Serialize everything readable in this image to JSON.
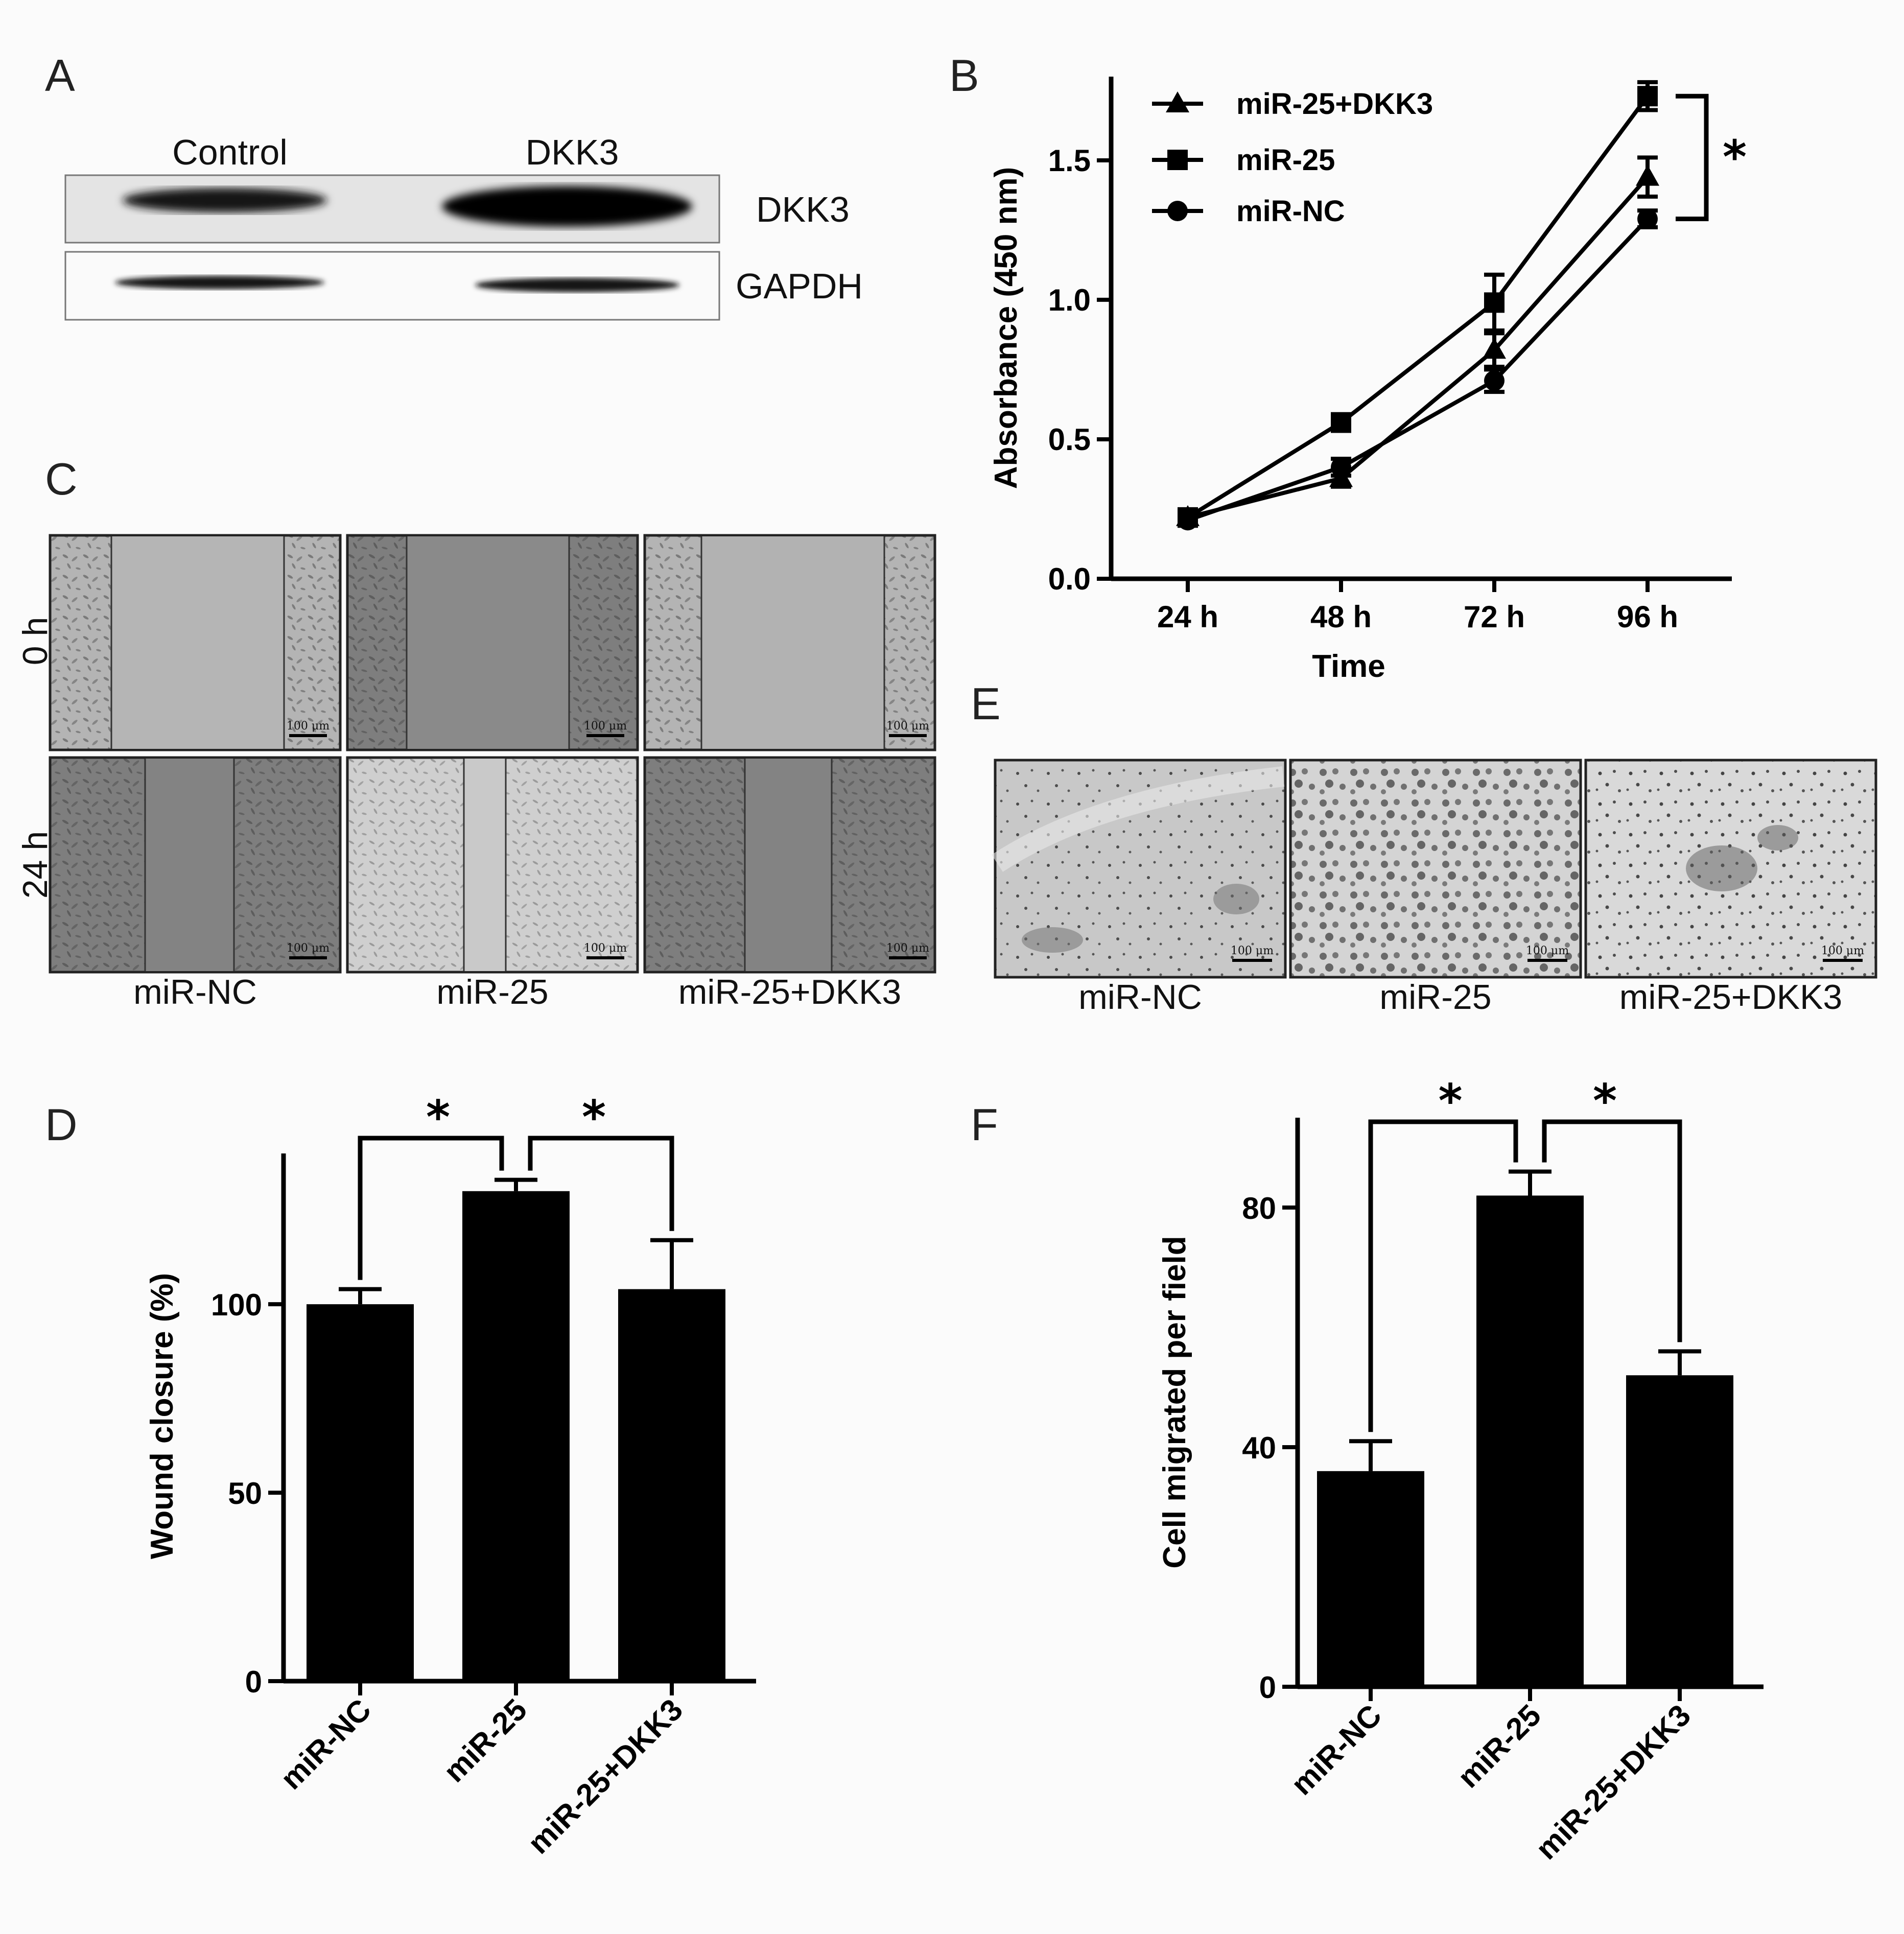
{
  "panel_labels": [
    "A",
    "B",
    "C",
    "D",
    "E",
    "F"
  ],
  "panel_A": {
    "lanes": [
      "Control",
      "DKK3"
    ],
    "rows": [
      "DKK3",
      "GAPDH"
    ]
  },
  "panel_C": {
    "row_labels": [
      "0 h",
      "24 h"
    ],
    "columns": [
      "miR-NC",
      "miR-25",
      "miR-25+DKK3"
    ],
    "scale_label": "100 μm"
  },
  "panel_E": {
    "columns": [
      "miR-NC",
      "miR-25",
      "miR-25+DKK3"
    ],
    "scale_label": "100 μm"
  },
  "chart_data": [
    {
      "id": "B",
      "type": "line",
      "xlabel": "Time",
      "ylabel": "Absorbance (450 nm)",
      "categories": [
        "24 h",
        "48 h",
        "72 h",
        "96 h"
      ],
      "ylim": [
        0.0,
        1.8
      ],
      "yticks": [
        0.0,
        0.5,
        1.0,
        1.5
      ],
      "yticklabels": [
        "0.0",
        "0.5",
        "1.0",
        "1.5"
      ],
      "legend_position": "top-left",
      "series": [
        {
          "name": "miR-25+DKK3",
          "marker": "triangle",
          "values": [
            0.22,
            0.36,
            0.82,
            1.44
          ],
          "errors": [
            0.02,
            0.03,
            0.06,
            0.07
          ]
        },
        {
          "name": "miR-25",
          "marker": "square",
          "values": [
            0.22,
            0.56,
            0.99,
            1.73
          ],
          "errors": [
            0.02,
            0.03,
            0.1,
            0.05
          ]
        },
        {
          "name": "miR-NC",
          "marker": "circle",
          "values": [
            0.21,
            0.4,
            0.71,
            1.29
          ],
          "errors": [
            0.02,
            0.03,
            0.04,
            0.03
          ]
        }
      ],
      "significance": "*"
    },
    {
      "id": "D",
      "type": "bar",
      "ylabel": "Wound closure (%)",
      "categories": [
        "miR-NC",
        "miR-25",
        "miR-25+DKK3"
      ],
      "values": [
        100,
        130,
        104
      ],
      "errors": [
        4,
        3,
        13
      ],
      "ylim": [
        0,
        140
      ],
      "yticks": [
        0,
        50,
        100
      ],
      "yticklabels": [
        "0",
        "50",
        "100"
      ],
      "significance": [
        "*",
        "*"
      ]
    },
    {
      "id": "F",
      "type": "bar",
      "ylabel": "Cell migrated per field",
      "categories": [
        "miR-NC",
        "miR-25",
        "miR-25+DKK3"
      ],
      "values": [
        36,
        82,
        52
      ],
      "errors": [
        5,
        4,
        4
      ],
      "ylim": [
        0,
        95
      ],
      "yticks": [
        0,
        40,
        80
      ],
      "yticklabels": [
        "0",
        "40",
        "80"
      ],
      "significance": [
        "*",
        "*"
      ]
    }
  ]
}
